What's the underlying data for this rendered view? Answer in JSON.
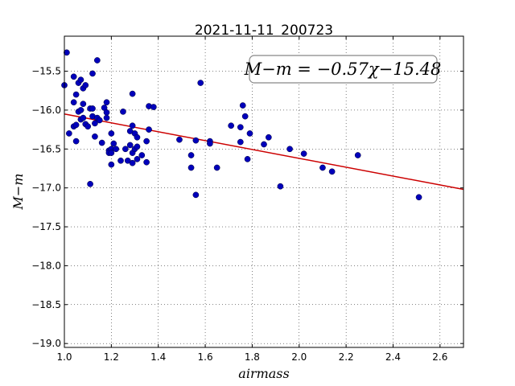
{
  "chart_data": {
    "type": "scatter",
    "title": "2021-11-11_200723",
    "xlabel": "airmass",
    "ylabel": "M−m",
    "xlim": [
      1.0,
      2.7
    ],
    "ylim": [
      -19.05,
      -15.05
    ],
    "x_ticks": [
      1.0,
      1.2,
      1.4,
      1.6,
      1.8,
      2.0,
      2.2,
      2.4,
      2.6
    ],
    "x_tick_labels": [
      "1.0",
      "1.2",
      "1.4",
      "1.6",
      "1.8",
      "2.0",
      "2.2",
      "2.4",
      "2.6"
    ],
    "y_ticks": [
      -15.5,
      -16.0,
      -16.5,
      -17.0,
      -17.5,
      -18.0,
      -18.5,
      -19.0
    ],
    "y_tick_labels": [
      "−15.5",
      "−16.0",
      "−16.5",
      "−17.0",
      "−17.5",
      "−18.0",
      "−18.5",
      "−19.0"
    ],
    "grid": true,
    "annotation": "M−m = −0.57χ−15.48",
    "fit": {
      "slope": -0.57,
      "intercept": -15.48,
      "color": "#cc0000"
    },
    "point_color": "#0000bb",
    "points": [
      {
        "x": 1.0,
        "y": -15.68
      },
      {
        "x": 1.01,
        "y": -15.26
      },
      {
        "x": 1.02,
        "y": -16.3
      },
      {
        "x": 1.04,
        "y": -15.57
      },
      {
        "x": 1.04,
        "y": -15.9
      },
      {
        "x": 1.04,
        "y": -16.21
      },
      {
        "x": 1.05,
        "y": -15.8
      },
      {
        "x": 1.05,
        "y": -16.4
      },
      {
        "x": 1.05,
        "y": -16.19
      },
      {
        "x": 1.06,
        "y": -15.65
      },
      {
        "x": 1.06,
        "y": -16.02
      },
      {
        "x": 1.07,
        "y": -15.61
      },
      {
        "x": 1.07,
        "y": -16.0
      },
      {
        "x": 1.07,
        "y": -16.12
      },
      {
        "x": 1.08,
        "y": -15.92
      },
      {
        "x": 1.08,
        "y": -16.1
      },
      {
        "x": 1.08,
        "y": -15.72
      },
      {
        "x": 1.09,
        "y": -15.68
      },
      {
        "x": 1.09,
        "y": -16.18
      },
      {
        "x": 1.1,
        "y": -16.21
      },
      {
        "x": 1.11,
        "y": -15.98
      },
      {
        "x": 1.11,
        "y": -16.95
      },
      {
        "x": 1.12,
        "y": -16.08
      },
      {
        "x": 1.12,
        "y": -15.98
      },
      {
        "x": 1.12,
        "y": -15.53
      },
      {
        "x": 1.13,
        "y": -16.17
      },
      {
        "x": 1.13,
        "y": -16.34
      },
      {
        "x": 1.14,
        "y": -16.1
      },
      {
        "x": 1.14,
        "y": -15.36
      },
      {
        "x": 1.15,
        "y": -16.13
      },
      {
        "x": 1.16,
        "y": -16.42
      },
      {
        "x": 1.17,
        "y": -15.97
      },
      {
        "x": 1.18,
        "y": -16.03
      },
      {
        "x": 1.18,
        "y": -15.9
      },
      {
        "x": 1.18,
        "y": -16.1
      },
      {
        "x": 1.19,
        "y": -16.52
      },
      {
        "x": 1.19,
        "y": -16.55
      },
      {
        "x": 1.2,
        "y": -16.5
      },
      {
        "x": 1.2,
        "y": -16.7
      },
      {
        "x": 1.2,
        "y": -16.3
      },
      {
        "x": 1.2,
        "y": -16.55
      },
      {
        "x": 1.21,
        "y": -16.43
      },
      {
        "x": 1.22,
        "y": -16.5
      },
      {
        "x": 1.24,
        "y": -16.65
      },
      {
        "x": 1.25,
        "y": -16.02
      },
      {
        "x": 1.26,
        "y": -16.5
      },
      {
        "x": 1.27,
        "y": -16.65
      },
      {
        "x": 1.28,
        "y": -16.27
      },
      {
        "x": 1.28,
        "y": -16.45
      },
      {
        "x": 1.29,
        "y": -16.68
      },
      {
        "x": 1.29,
        "y": -16.2
      },
      {
        "x": 1.29,
        "y": -15.79
      },
      {
        "x": 1.29,
        "y": -16.55
      },
      {
        "x": 1.3,
        "y": -16.5
      },
      {
        "x": 1.3,
        "y": -16.3
      },
      {
        "x": 1.31,
        "y": -16.35
      },
      {
        "x": 1.31,
        "y": -16.47
      },
      {
        "x": 1.31,
        "y": -16.63
      },
      {
        "x": 1.33,
        "y": -16.58
      },
      {
        "x": 1.35,
        "y": -16.4
      },
      {
        "x": 1.35,
        "y": -16.67
      },
      {
        "x": 1.36,
        "y": -16.25
      },
      {
        "x": 1.36,
        "y": -15.95
      },
      {
        "x": 1.38,
        "y": -15.96
      },
      {
        "x": 1.49,
        "y": -16.38
      },
      {
        "x": 1.54,
        "y": -16.74
      },
      {
        "x": 1.54,
        "y": -16.58
      },
      {
        "x": 1.56,
        "y": -16.39
      },
      {
        "x": 1.56,
        "y": -17.09
      },
      {
        "x": 1.58,
        "y": -15.65
      },
      {
        "x": 1.62,
        "y": -16.4
      },
      {
        "x": 1.62,
        "y": -16.43
      },
      {
        "x": 1.65,
        "y": -16.74
      },
      {
        "x": 1.71,
        "y": -16.2
      },
      {
        "x": 1.75,
        "y": -16.22
      },
      {
        "x": 1.75,
        "y": -16.41
      },
      {
        "x": 1.76,
        "y": -15.94
      },
      {
        "x": 1.77,
        "y": -16.08
      },
      {
        "x": 1.78,
        "y": -16.63
      },
      {
        "x": 1.79,
        "y": -16.3
      },
      {
        "x": 1.85,
        "y": -16.44
      },
      {
        "x": 1.87,
        "y": -16.35
      },
      {
        "x": 1.92,
        "y": -16.98
      },
      {
        "x": 1.96,
        "y": -16.5
      },
      {
        "x": 2.02,
        "y": -16.56
      },
      {
        "x": 2.1,
        "y": -16.74
      },
      {
        "x": 2.14,
        "y": -16.79
      },
      {
        "x": 2.25,
        "y": -16.58
      },
      {
        "x": 2.51,
        "y": -17.12
      }
    ]
  }
}
